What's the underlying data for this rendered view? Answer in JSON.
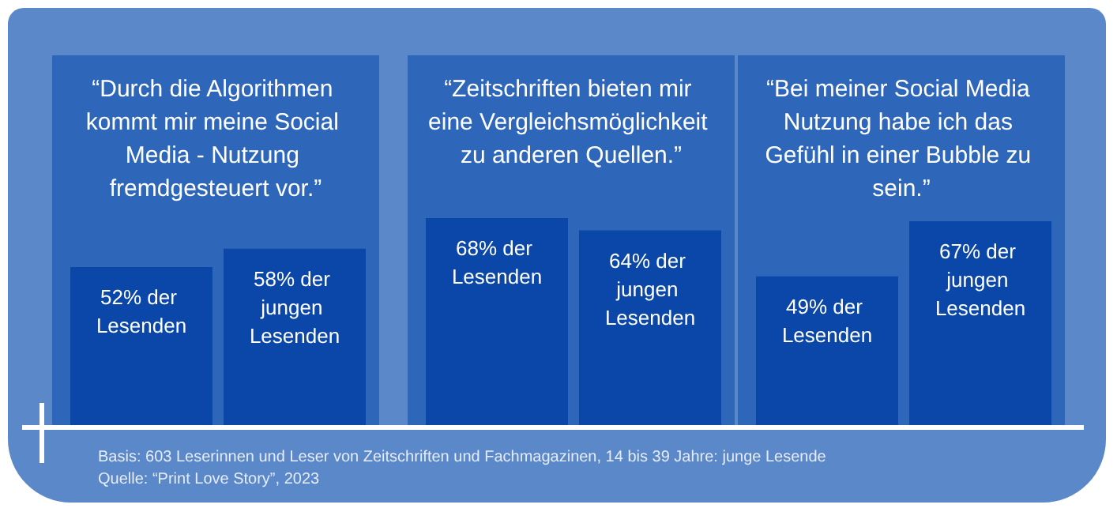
{
  "chart_data": [
    {
      "type": "bar",
      "title": "“Durch die Algorithmen kommt mir meine Social Media - Nutzung fremdgesteuert vor.”",
      "categories": [
        null,
        null
      ],
      "values": [
        52,
        58
      ],
      "color": "#0a47a8",
      "value_labels": [
        "52% der Lesenden",
        "58% der jungen Lesenden"
      ],
      "grid": false,
      "tick_labels": false,
      "annotations": [
        "Basis: 603 Leserinnen und Leser von Zeitschriften und Fachmagazinen,  14 bis 39 Jahre: junge Lesende",
        "Quelle: “Print Love Story”, 2023"
      ]
    },
    {
      "type": "bar",
      "title": "“Zeitschriften bieten mir eine Vergleichsmöglichkeit zu anderen Quellen.”",
      "categories": [
        null,
        null
      ],
      "values": [
        68,
        64
      ],
      "color": "#0a47a8",
      "value_labels": [
        "68% der Lesenden",
        "64% der jungen Lesenden"
      ],
      "grid": false,
      "tick_labels": false
    },
    {
      "type": "bar",
      "title": "“Bei meiner Social Media Nutzung habe ich das Gefühl in einer Bubble zu sein.”",
      "categories": [
        null,
        null
      ],
      "values": [
        49,
        67
      ],
      "color": "#0a47a8",
      "value_labels": [
        "49% der Lesenden",
        "67% der jungen Lesenden"
      ],
      "grid": false,
      "tick_labels": false
    }
  ]
}
